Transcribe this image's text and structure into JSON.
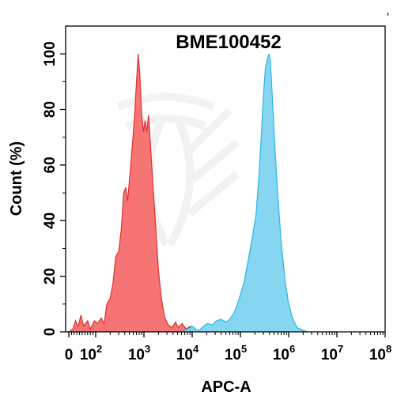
{
  "chart_data": {
    "type": "area",
    "title": "BME100452",
    "xlabel": "APC-A",
    "ylabel": "Count  (%)",
    "corner_mark": "'",
    "x_scale": "biexponential (linear near 0, log10 above ~10^2)",
    "xlim": [
      0,
      100000000
    ],
    "ylim": [
      0,
      110
    ],
    "y_ticks": [
      0,
      20,
      40,
      60,
      80,
      100
    ],
    "x_ticks": [
      {
        "value": 0,
        "base": "0",
        "exp": ""
      },
      {
        "value": 100,
        "base": "10",
        "exp": "2"
      },
      {
        "value": 1000,
        "base": "10",
        "exp": "3"
      },
      {
        "value": 10000,
        "base": "10",
        "exp": "4"
      },
      {
        "value": 100000,
        "base": "10",
        "exp": "5"
      },
      {
        "value": 1000000,
        "base": "10",
        "exp": "6"
      },
      {
        "value": 10000000,
        "base": "10",
        "exp": "7"
      },
      {
        "value": 100000000,
        "base": "10",
        "exp": "8"
      }
    ],
    "grid": false,
    "legend": "none",
    "series": [
      {
        "fill": "#f56d6d",
        "stroke": "#e03030",
        "points": [
          [
            0,
            0
          ],
          [
            15,
            1
          ],
          [
            25,
            4
          ],
          [
            35,
            2
          ],
          [
            45,
            6
          ],
          [
            55,
            2
          ],
          [
            70,
            4
          ],
          [
            80,
            1
          ],
          [
            95,
            4
          ],
          [
            110,
            3
          ],
          [
            130,
            5
          ],
          [
            150,
            3
          ],
          [
            170,
            10
          ],
          [
            200,
            12
          ],
          [
            230,
            18
          ],
          [
            260,
            27
          ],
          [
            300,
            29
          ],
          [
            340,
            37
          ],
          [
            380,
            50
          ],
          [
            420,
            52
          ],
          [
            460,
            47
          ],
          [
            520,
            58
          ],
          [
            580,
            68
          ],
          [
            640,
            78
          ],
          [
            700,
            90
          ],
          [
            760,
            100
          ],
          [
            820,
            93
          ],
          [
            900,
            78
          ],
          [
            980,
            72
          ],
          [
            1060,
            76
          ],
          [
            1150,
            72
          ],
          [
            1250,
            78
          ],
          [
            1380,
            66
          ],
          [
            1550,
            52
          ],
          [
            1750,
            38
          ],
          [
            2000,
            22
          ],
          [
            2300,
            12
          ],
          [
            2700,
            5
          ],
          [
            3200,
            2.5
          ],
          [
            3800,
            1.5
          ],
          [
            4500,
            3.5
          ],
          [
            5200,
            1.5
          ],
          [
            6200,
            3
          ],
          [
            7500,
            1
          ],
          [
            9000,
            2
          ],
          [
            11000,
            0.5
          ],
          [
            13000,
            0
          ]
        ]
      },
      {
        "fill": "#7fd4f0",
        "stroke": "#29b6e6",
        "points": [
          [
            6000,
            0
          ],
          [
            8000,
            1
          ],
          [
            10000,
            2
          ],
          [
            12000,
            1
          ],
          [
            14000,
            0.5
          ],
          [
            17000,
            2
          ],
          [
            21000,
            3
          ],
          [
            26000,
            2.5
          ],
          [
            32000,
            4
          ],
          [
            40000,
            4.5
          ],
          [
            50000,
            3.5
          ],
          [
            60000,
            4.5
          ],
          [
            75000,
            7
          ],
          [
            95000,
            12
          ],
          [
            120000,
            18
          ],
          [
            150000,
            27
          ],
          [
            180000,
            35
          ],
          [
            210000,
            42
          ],
          [
            240000,
            55
          ],
          [
            270000,
            70
          ],
          [
            300000,
            85
          ],
          [
            330000,
            95
          ],
          [
            360000,
            98
          ],
          [
            390000,
            100
          ],
          [
            420000,
            97
          ],
          [
            460000,
            84
          ],
          [
            520000,
            66
          ],
          [
            600000,
            48
          ],
          [
            700000,
            32
          ],
          [
            850000,
            18
          ],
          [
            1000000,
            10
          ],
          [
            1200000,
            5
          ],
          [
            1500000,
            1.5
          ],
          [
            2000000,
            0.5
          ],
          [
            2500000,
            0
          ]
        ]
      }
    ]
  }
}
